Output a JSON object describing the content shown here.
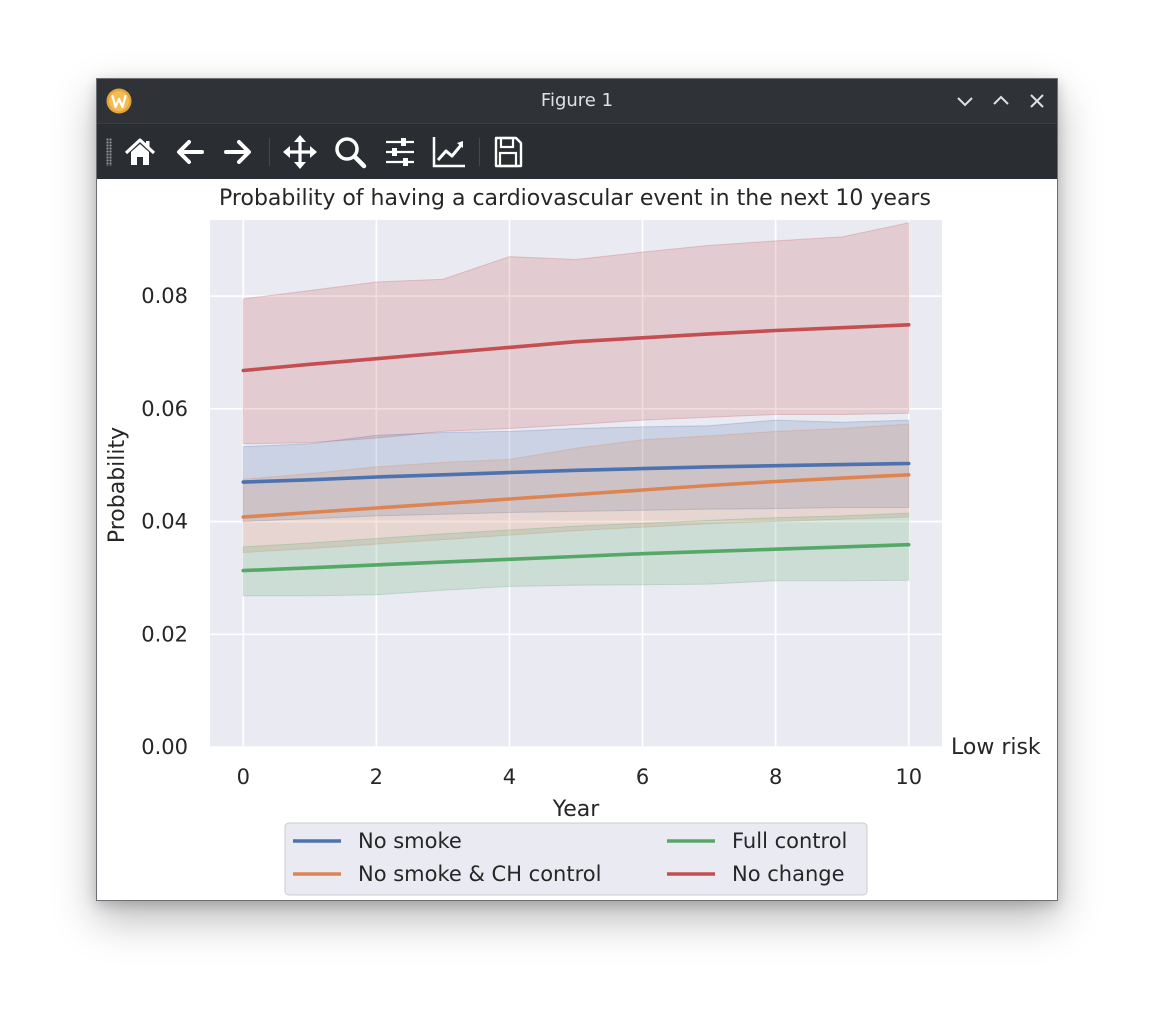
{
  "window": {
    "title": "Figure 1",
    "app_icon": "app-logo-icon",
    "controls": [
      "minimize-icon",
      "maximize-icon",
      "close-icon"
    ]
  },
  "toolbar": {
    "buttons": [
      {
        "name": "home",
        "icon": "home-icon"
      },
      {
        "name": "back",
        "icon": "back-arrow-icon"
      },
      {
        "name": "forward",
        "icon": "forward-arrow-icon"
      },
      {
        "name": "pan",
        "icon": "move-icon"
      },
      {
        "name": "zoom",
        "icon": "zoom-icon"
      },
      {
        "name": "configure-subplots",
        "icon": "sliders-icon"
      },
      {
        "name": "edit-axis",
        "icon": "chart-line-icon"
      },
      {
        "name": "save",
        "icon": "save-icon"
      }
    ]
  },
  "chart_data": {
    "type": "line",
    "title": "Probability of having a cardiovascular event in the next 10 years",
    "xlabel": "Year",
    "ylabel": "Probability",
    "side_label": "Low risk",
    "xlim": [
      -0.5,
      10.5
    ],
    "ylim": [
      0.0,
      0.0935
    ],
    "xticks": [
      0,
      2,
      4,
      6,
      8,
      10
    ],
    "xtick_labels": [
      "0",
      "2",
      "4",
      "6",
      "8",
      "10"
    ],
    "yticks": [
      0.0,
      0.02,
      0.04,
      0.06,
      0.08
    ],
    "ytick_labels": [
      "0.00",
      "0.02",
      "0.04",
      "0.06",
      "0.08"
    ],
    "grid": true,
    "legend_position": "below",
    "x": [
      0,
      1,
      2,
      3,
      4,
      5,
      6,
      7,
      8,
      9,
      10
    ],
    "series": [
      {
        "name": "No smoke",
        "color": "#4c72b0",
        "values": [
          0.047,
          0.0474,
          0.0479,
          0.0483,
          0.0487,
          0.0491,
          0.0494,
          0.0497,
          0.0499,
          0.0501,
          0.0503
        ],
        "upper": [
          0.0533,
          0.0538,
          0.0553,
          0.0558,
          0.056,
          0.0565,
          0.0568,
          0.057,
          0.058,
          0.0576,
          0.058
        ],
        "lower": [
          0.04,
          0.0405,
          0.041,
          0.0413,
          0.0416,
          0.0418,
          0.042,
          0.0422,
          0.0423,
          0.0425,
          0.0425
        ]
      },
      {
        "name": "No smoke & CH control",
        "color": "#dd8452",
        "values": [
          0.0408,
          0.0416,
          0.0424,
          0.0432,
          0.044,
          0.0448,
          0.0456,
          0.0464,
          0.0471,
          0.0477,
          0.0483
        ],
        "upper": [
          0.0475,
          0.0485,
          0.0497,
          0.0505,
          0.051,
          0.053,
          0.0545,
          0.0552,
          0.056,
          0.0565,
          0.0573
        ],
        "lower": [
          0.0345,
          0.0352,
          0.036,
          0.0368,
          0.0376,
          0.0384,
          0.039,
          0.0396,
          0.04,
          0.0404,
          0.0408
        ]
      },
      {
        "name": "Full control",
        "color": "#55a868",
        "values": [
          0.0313,
          0.0318,
          0.0323,
          0.0328,
          0.0333,
          0.0338,
          0.0343,
          0.0347,
          0.0351,
          0.0355,
          0.0359
        ],
        "upper": [
          0.0355,
          0.0362,
          0.037,
          0.0378,
          0.0385,
          0.0392,
          0.0397,
          0.0402,
          0.0407,
          0.041,
          0.0415
        ],
        "lower": [
          0.0268,
          0.0268,
          0.027,
          0.0278,
          0.0285,
          0.0287,
          0.0288,
          0.0289,
          0.0295,
          0.0295,
          0.0296
        ]
      },
      {
        "name": "No change",
        "color": "#c44e52",
        "values": [
          0.0668,
          0.0679,
          0.0689,
          0.0699,
          0.0709,
          0.0719,
          0.0726,
          0.0733,
          0.0739,
          0.0744,
          0.0749
        ],
        "upper": [
          0.0795,
          0.081,
          0.0825,
          0.083,
          0.087,
          0.0865,
          0.0878,
          0.089,
          0.0898,
          0.0905,
          0.093
        ],
        "lower": [
          0.0538,
          0.054,
          0.0548,
          0.056,
          0.0565,
          0.0572,
          0.058,
          0.0585,
          0.059,
          0.059,
          0.0592
        ]
      }
    ],
    "legend_order": [
      "No smoke",
      "No smoke & CH control",
      "Full control",
      "No change"
    ]
  }
}
